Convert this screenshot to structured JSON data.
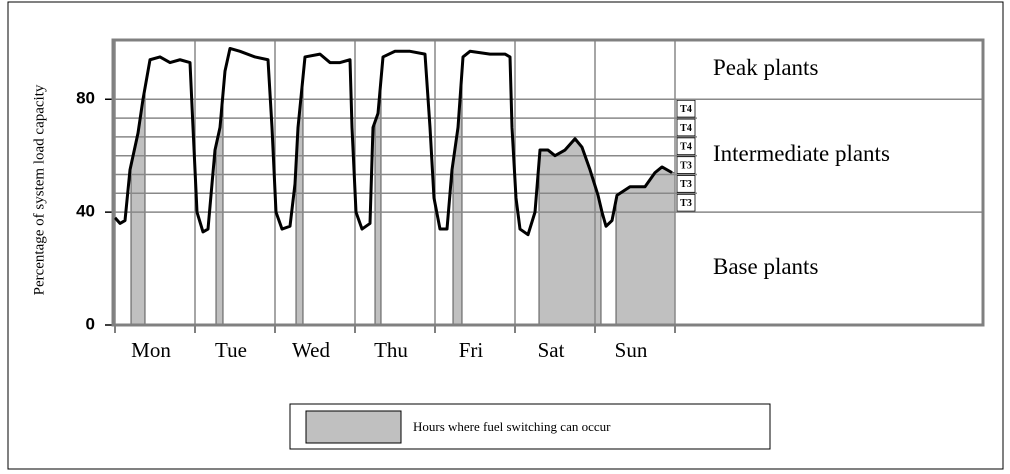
{
  "chart_data": {
    "type": "line",
    "ylabel": "Percentage of system load capacity",
    "categories": [
      "Mon",
      "Tue",
      "Wed",
      "Thu",
      "Fri",
      "Sat",
      "Sun"
    ],
    "xlim": [
      0,
      168
    ],
    "xticks": [
      0,
      24,
      48,
      72,
      96,
      120,
      144,
      168
    ],
    "ylim": [
      0,
      101
    ],
    "yticks": [
      0,
      40,
      80
    ],
    "x": [
      0,
      1.5,
      3,
      4.5,
      6.9,
      8.4,
      10.5,
      13.5,
      16.5,
      19.5,
      22.5,
      23.4,
      24.6,
      26.4,
      27.9,
      29.1,
      30,
      31.5,
      33,
      34.5,
      37.5,
      42,
      45.9,
      47.1,
      48.3,
      50.1,
      52.5,
      54,
      54.9,
      57,
      61.5,
      64.5,
      67.5,
      70.5,
      71.1,
      72.3,
      74.1,
      76.5,
      77.4,
      78.9,
      80.4,
      84,
      88.5,
      93,
      94.5,
      95.7,
      97.5,
      99.6,
      101.1,
      102.9,
      104.4,
      106.5,
      112.5,
      117,
      118.5,
      119.1,
      120.3,
      121.5,
      123.9,
      126,
      127.5,
      129.9,
      132,
      135,
      138,
      140.1,
      142.5,
      144.9,
      146.1,
      147.3,
      149.1,
      150.6,
      154.5,
      159,
      162,
      164.1,
      167.1
    ],
    "values": [
      38,
      36,
      37,
      55,
      68,
      80,
      94,
      95,
      93,
      94,
      93,
      70,
      40,
      33,
      34,
      50,
      62,
      70,
      90,
      98,
      97,
      95,
      94,
      70,
      40,
      34,
      35,
      50,
      70,
      95,
      96,
      93,
      93,
      94,
      70,
      40,
      34,
      36,
      70,
      75,
      95,
      97,
      97,
      96,
      70,
      45,
      34,
      34,
      55,
      70,
      95,
      97,
      96,
      96,
      95,
      70,
      45,
      34,
      32,
      40,
      62,
      62,
      60,
      62,
      66,
      63,
      55,
      46,
      40,
      35,
      37,
      46,
      49,
      49,
      54,
      56,
      54
    ],
    "color": "#000000",
    "shaded_hours": [
      [
        4.8,
        9
      ],
      [
        30.3,
        32.4
      ],
      [
        54.3,
        56.4
      ],
      [
        78,
        79.8
      ],
      [
        101.4,
        104.1
      ],
      [
        127.2,
        145.8
      ],
      [
        150.3,
        168
      ]
    ],
    "shade_color": "#c0c0c0",
    "legend": "Hours where fuel switching can occur",
    "regions": [
      {
        "label": "Base plants",
        "from": 0,
        "to": 40
      },
      {
        "label": "Intermediate plants",
        "from": 40,
        "to": 80
      },
      {
        "label": "Peak plants",
        "from": 80,
        "to": 101
      }
    ],
    "tiers": [
      {
        "label": "T3",
        "from": 40,
        "to": 46.67
      },
      {
        "label": "T3",
        "from": 46.67,
        "to": 53.33
      },
      {
        "label": "T3",
        "from": 53.33,
        "to": 60
      },
      {
        "label": "T4",
        "from": 60,
        "to": 66.67
      },
      {
        "label": "T4",
        "from": 66.67,
        "to": 73.33
      },
      {
        "label": "T4",
        "from": 73.33,
        "to": 80
      }
    ]
  }
}
